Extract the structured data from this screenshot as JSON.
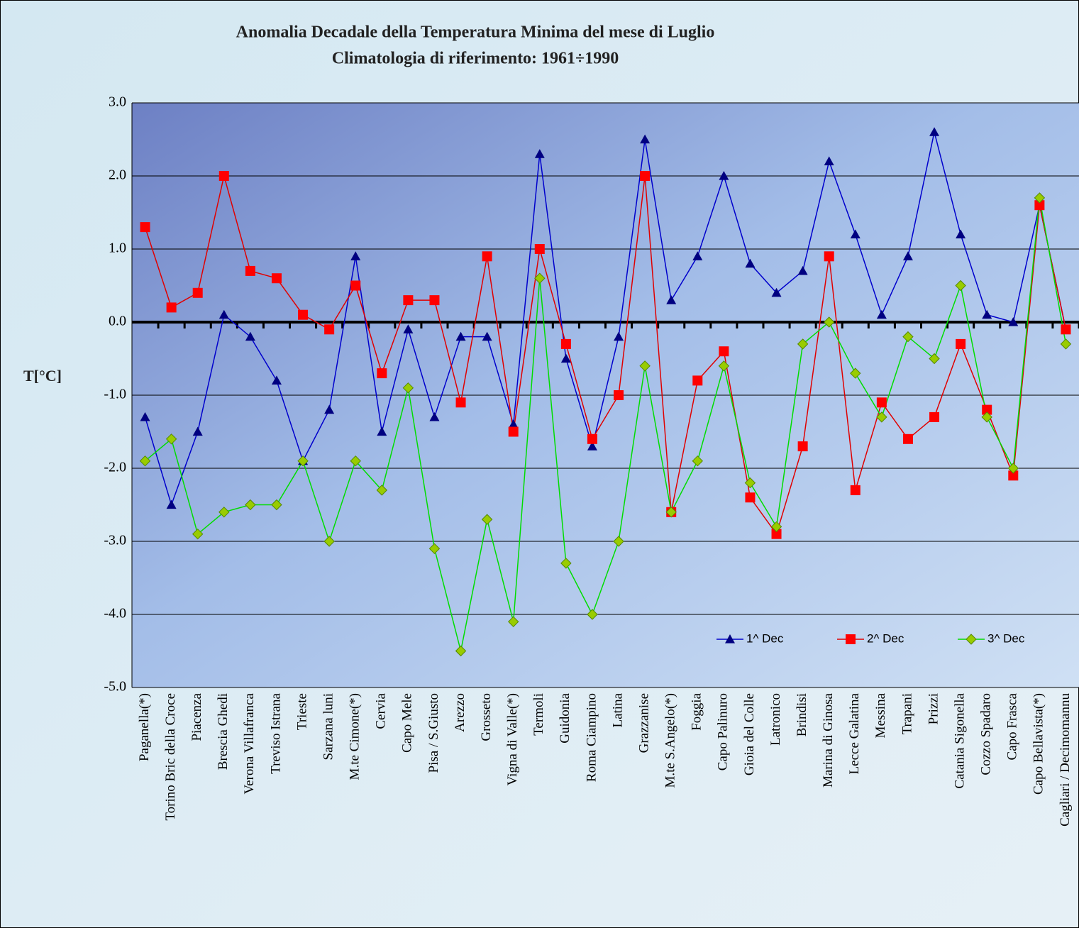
{
  "chart_data": {
    "type": "line",
    "title": "Anomalia Decadale della Temperatura Minima del mese di Luglio",
    "subtitle": "Climatologia di riferimento: 1961÷1990",
    "y_label": "T[°C]",
    "categories": [
      "Paganella(*)",
      "Torino Bric della Croce",
      "Piacenza",
      "Brescia Ghedi",
      "Verona Villafranca",
      "Treviso Istrana",
      "Trieste",
      "Sarzana luni",
      "M.te Cimone(*)",
      "Cervia",
      "Capo Mele",
      "Pisa / S.Giusto",
      "Arezzo",
      "Grosseto",
      "Vigna di Valle(*)",
      "Termoli",
      "Guidonia",
      "Roma Ciampino",
      "Latina",
      "Grazzanise",
      "M.te S.Angelo(*)",
      "Foggia",
      "Capo Palinuro",
      "Gioia del Colle",
      "Latronico",
      "Brindisi",
      "Marina di Ginosa",
      "Lecce Galatina",
      "Messina",
      "Trapani",
      "Prizzi",
      "Catania Sigonella",
      "Cozzo Spadaro",
      "Capo Frasca",
      "Capo Bellavista(*)",
      "Cagliari / Decimomannu"
    ],
    "series": [
      {
        "name": "1^ Dec",
        "color": "#0000cc",
        "marker_color": "#000080",
        "marker": "triangle",
        "values": [
          -1.3,
          -2.5,
          -1.5,
          0.1,
          -0.2,
          -0.8,
          -1.9,
          -1.2,
          0.9,
          -1.5,
          -0.1,
          -1.3,
          -0.2,
          -0.2,
          -1.4,
          2.3,
          -0.5,
          -1.7,
          -0.2,
          2.5,
          0.3,
          0.9,
          2.0,
          0.8,
          0.4,
          0.7,
          2.2,
          1.2,
          0.1,
          0.9,
          2.6,
          1.2,
          0.1,
          0.0,
          1.6,
          -0.1
        ]
      },
      {
        "name": "2^ Dec",
        "color": "#e00000",
        "marker_color": "#ff0000",
        "marker": "square",
        "values": [
          1.3,
          0.2,
          0.4,
          2.0,
          0.7,
          0.6,
          0.1,
          -0.1,
          0.5,
          -0.7,
          0.3,
          0.3,
          -1.1,
          0.9,
          -1.5,
          1.0,
          -0.3,
          -1.6,
          -1.0,
          2.0,
          -2.6,
          -0.8,
          -0.4,
          -2.4,
          -2.9,
          -1.7,
          0.9,
          -2.3,
          -1.1,
          -1.6,
          -1.3,
          -0.3,
          -1.2,
          -2.1,
          1.6,
          -0.1
        ]
      },
      {
        "name": "3^ Dec",
        "color": "#00dd00",
        "marker_color": "#99cc00",
        "marker": "diamond",
        "values": [
          -1.9,
          -1.6,
          -2.9,
          -2.6,
          -2.5,
          -2.5,
          -1.9,
          -3.0,
          -1.9,
          -2.3,
          -0.9,
          -3.1,
          -4.5,
          -2.7,
          -4.1,
          0.6,
          -3.3,
          -4.0,
          -3.0,
          -0.6,
          -2.6,
          -1.9,
          -0.6,
          -2.2,
          -2.8,
          -0.3,
          0.0,
          -0.7,
          -1.3,
          -0.2,
          -0.5,
          0.5,
          -1.3,
          -2.0,
          1.7,
          -0.3
        ]
      }
    ],
    "ylim": [
      -5,
      3
    ],
    "yticks": [
      {
        "value": -5,
        "label": "-5.0"
      },
      {
        "value": -4,
        "label": "-4.0"
      },
      {
        "value": -3,
        "label": "-3.0"
      },
      {
        "value": -2,
        "label": "-2.0"
      },
      {
        "value": -1,
        "label": "-1.0"
      },
      {
        "value": 0,
        "label": "0.0"
      },
      {
        "value": 1,
        "label": "1.0"
      },
      {
        "value": 2,
        "label": "2.0"
      },
      {
        "value": 3,
        "label": "3.0"
      }
    ],
    "grid": true,
    "legend": "bottom-right"
  }
}
